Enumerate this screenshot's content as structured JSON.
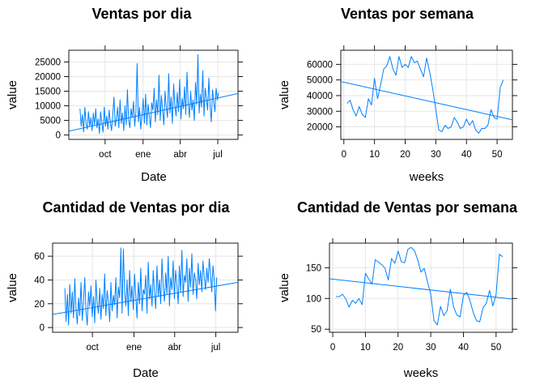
{
  "chart_data": [
    {
      "type": "line",
      "title": "Ventas por dia",
      "xlabel": "Date",
      "ylabel": "value",
      "x_tick_labels": [
        "oct",
        "ene",
        "abr",
        "jul"
      ],
      "x_tick_dates": [
        "2016-10-01",
        "2017-01-01",
        "2017-04-01",
        "2017-07-01"
      ],
      "x_range": [
        "2016-07-05",
        "2017-08-19"
      ],
      "y_ticks": [
        0,
        5000,
        10000,
        15000,
        20000,
        25000
      ],
      "y_tick_labels": [
        "0",
        "5000",
        "10000",
        "15000",
        "20000",
        "25000"
      ],
      "ylim": [
        -1500,
        29000
      ],
      "grid": true,
      "series": [
        {
          "color": "#0080ff",
          "start_date": "2016-08-01",
          "end_date": "2017-07-03",
          "sample_step_days": 3,
          "values": [
            9000,
            3000,
            7000,
            1000,
            9500,
            4000,
            2000,
            8000,
            3000,
            6000,
            1500,
            7500,
            3500,
            9000,
            2500,
            5500,
            500,
            8000,
            4000,
            1000,
            9500,
            3000,
            6500,
            2000,
            8500,
            4500,
            1500,
            7000,
            13000,
            3000,
            5500,
            9500,
            2500,
            12000,
            4000,
            7500,
            1500,
            10000,
            3500,
            15500,
            5000,
            2500,
            9000,
            6000,
            11500,
            3000,
            8000,
            24500,
            4500,
            9500,
            2000,
            7000,
            12500,
            4000,
            14000,
            3500,
            10500,
            6500,
            2500,
            11000,
            8500,
            16000,
            4500,
            12000,
            7000,
            20500,
            5000,
            13500,
            8500,
            3500,
            15000,
            9500,
            6000,
            21000,
            7500,
            13000,
            4000,
            17500,
            10000,
            6500,
            14500,
            8000,
            19000,
            5500,
            12500,
            9000,
            16500,
            7000,
            21500,
            11000,
            6000,
            15000,
            8500,
            12000,
            5000,
            18000,
            10500,
            27500,
            7500,
            14000,
            9500,
            22000,
            6500,
            16000,
            12500,
            8500,
            19500,
            10000,
            4500,
            15500,
            11500,
            8000,
            16000,
            12000,
            14500
          ]
        }
      ],
      "trend_line": {
        "start": [
          "2016-07-05",
          1300
        ],
        "end": [
          "2017-08-19",
          14200
        ]
      }
    },
    {
      "type": "line",
      "title": "Ventas por semana",
      "xlabel": "weeks",
      "ylabel": "value",
      "x_ticks": [
        0,
        10,
        20,
        30,
        40,
        50
      ],
      "x_tick_labels": [
        "0",
        "10",
        "20",
        "30",
        "40",
        "50"
      ],
      "xlim": [
        -1,
        55
      ],
      "y_ticks": [
        20000,
        30000,
        40000,
        50000,
        60000
      ],
      "y_tick_labels": [
        "20000",
        "30000",
        "40000",
        "50000",
        "60000"
      ],
      "ylim": [
        12000,
        69000
      ],
      "grid": true,
      "series": [
        {
          "color": "#0080ff",
          "x": [
            1,
            2,
            3,
            4,
            5,
            6,
            7,
            8,
            9,
            10,
            11,
            12,
            13,
            14,
            15,
            16,
            17,
            18,
            19,
            20,
            21,
            22,
            23,
            24,
            25,
            26,
            27,
            28,
            29,
            30,
            31,
            32,
            33,
            34,
            35,
            36,
            37,
            38,
            39,
            40,
            41,
            42,
            43,
            44,
            45,
            46,
            47,
            48,
            49,
            50,
            51,
            52
          ],
          "values": [
            35000,
            37000,
            31000,
            27000,
            33000,
            28000,
            26000,
            38000,
            34000,
            51000,
            38000,
            47000,
            57000,
            59000,
            65000,
            57000,
            53000,
            65000,
            58000,
            60000,
            58000,
            65000,
            61000,
            62000,
            57000,
            52000,
            64000,
            55000,
            44000,
            31000,
            18000,
            17000,
            21000,
            19000,
            20000,
            26000,
            23000,
            19000,
            20000,
            25000,
            21000,
            24000,
            18000,
            16000,
            19000,
            19000,
            21000,
            31000,
            26000,
            25000,
            45000,
            50000
          ]
        }
      ],
      "trend_line": {
        "start": [
          -1,
          49000
        ],
        "end": [
          55,
          24500
        ]
      }
    },
    {
      "type": "line",
      "title": "Cantidad de Ventas por dia",
      "xlabel": "Date",
      "ylabel": "value",
      "x_tick_labels": [
        "oct",
        "ene",
        "abr",
        "jul"
      ],
      "x_tick_dates": [
        "2016-10-01",
        "2017-01-01",
        "2017-04-01",
        "2017-07-01"
      ],
      "x_range": [
        "2016-07-05",
        "2017-08-19"
      ],
      "y_ticks": [
        0,
        20,
        40,
        60
      ],
      "y_tick_labels": [
        "0",
        "20",
        "40",
        "60"
      ],
      "ylim": [
        -4,
        71
      ],
      "grid": true,
      "series": [
        {
          "color": "#0080ff",
          "start_date": "2016-08-01",
          "end_date": "2017-07-03",
          "sample_step_days": 3,
          "values": [
            33,
            5,
            28,
            2,
            36,
            12,
            30,
            8,
            41,
            15,
            3,
            25,
            10,
            38,
            6,
            22,
            42,
            14,
            2,
            30,
            18,
            35,
            9,
            26,
            4,
            40,
            20,
            12,
            33,
            7,
            28,
            16,
            45,
            10,
            31,
            22,
            5,
            38,
            14,
            27,
            19,
            42,
            8,
            34,
            25,
            67,
            12,
            66,
            30,
            18,
            40,
            10,
            48,
            22,
            35,
            15,
            45,
            26,
            8,
            38,
            20,
            50,
            14,
            32,
            28,
            44,
            12,
            55,
            24,
            36,
            18,
            48,
            30,
            16,
            52,
            26,
            40,
            20,
            58,
            34,
            22,
            46,
            28,
            60,
            18,
            42,
            32,
            56,
            24,
            48,
            36,
            20,
            52,
            30,
            65,
            26,
            44,
            38,
            58,
            22,
            50,
            34,
            62,
            28,
            46,
            40,
            24,
            54,
            36,
            48,
            30,
            56,
            42,
            32,
            50,
            38,
            58,
            44,
            30,
            52,
            40,
            14,
            42
          ]
        }
      ],
      "trend_line": {
        "start": [
          "2016-07-05",
          11
        ],
        "end": [
          "2017-08-19",
          38
        ]
      }
    },
    {
      "type": "line",
      "title": "Cantidad de Ventas por semana",
      "xlabel": "weeks",
      "ylabel": "value",
      "x_ticks": [
        0,
        10,
        20,
        30,
        40,
        50
      ],
      "x_tick_labels": [
        "0",
        "10",
        "20",
        "30",
        "40",
        "50"
      ],
      "xlim": [
        -1,
        55
      ],
      "y_ticks": [
        50,
        100,
        150
      ],
      "y_tick_labels": [
        "50",
        "100",
        "150"
      ],
      "ylim": [
        45,
        190
      ],
      "grid": true,
      "series": [
        {
          "color": "#0080ff",
          "x": [
            1,
            2,
            3,
            4,
            5,
            6,
            7,
            8,
            9,
            10,
            11,
            12,
            13,
            14,
            15,
            16,
            17,
            18,
            19,
            20,
            21,
            22,
            23,
            24,
            25,
            26,
            27,
            28,
            29,
            30,
            31,
            32,
            33,
            34,
            35,
            36,
            37,
            38,
            39,
            40,
            41,
            42,
            43,
            44,
            45,
            46,
            47,
            48,
            49,
            50,
            51,
            52
          ],
          "values": [
            103,
            103,
            107,
            99,
            86,
            97,
            92,
            100,
            90,
            141,
            132,
            123,
            163,
            159,
            155,
            149,
            130,
            165,
            157,
            177,
            160,
            158,
            180,
            183,
            178,
            163,
            143,
            149,
            127,
            107,
            64,
            57,
            87,
            72,
            80,
            115,
            86,
            73,
            70,
            105,
            110,
            97,
            77,
            64,
            62,
            85,
            92,
            113,
            88,
            106,
            172,
            168
          ]
        }
      ],
      "trend_line": {
        "start": [
          -1,
          132
        ],
        "end": [
          55,
          99
        ]
      }
    }
  ]
}
